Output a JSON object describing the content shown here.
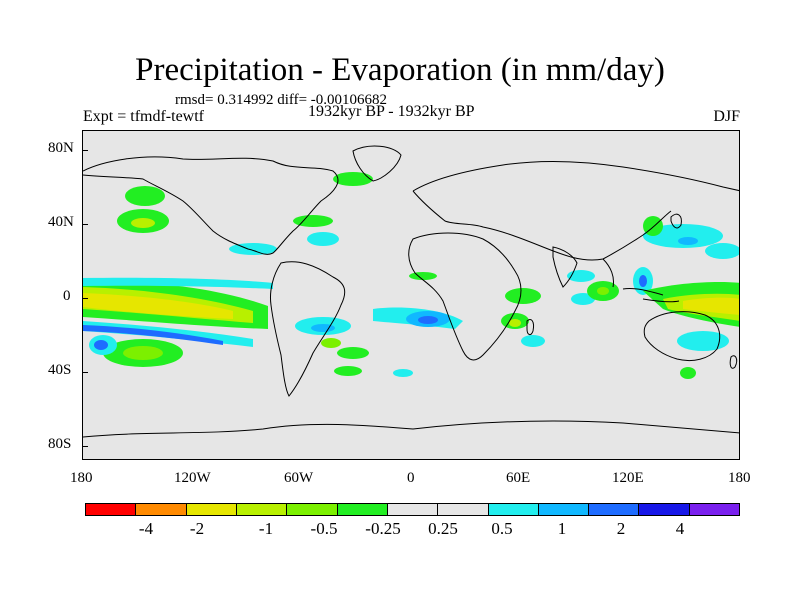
{
  "title": "Precipitation - Evaporation (in mm/day)",
  "stats": "rmsd= 0.314992 diff= -0.00106682",
  "expt": "Expt = tfmdf-tewtf",
  "period": "1932kyr BP - 1932kyr BP",
  "season": "DJF",
  "axes": {
    "y_labels": [
      "80N",
      "40N",
      "0",
      "40S",
      "80S"
    ],
    "x_labels": [
      "180",
      "120W",
      "60W",
      "0",
      "60E",
      "120E",
      "180"
    ]
  },
  "colorbar": {
    "colors": [
      "#ff0000",
      "#ff8a00",
      "#e6e600",
      "#b8f000",
      "#7cf000",
      "#22ee22",
      "#e6e6e6",
      "#e6e6e6",
      "#22eeee",
      "#10b8ff",
      "#1e6cff",
      "#1818e8",
      "#7a20ee"
    ],
    "labels": [
      "-4",
      "-2",
      "-1",
      "-0.5",
      "-0.25",
      "0.25",
      "0.5",
      "1",
      "2",
      "4"
    ]
  }
}
